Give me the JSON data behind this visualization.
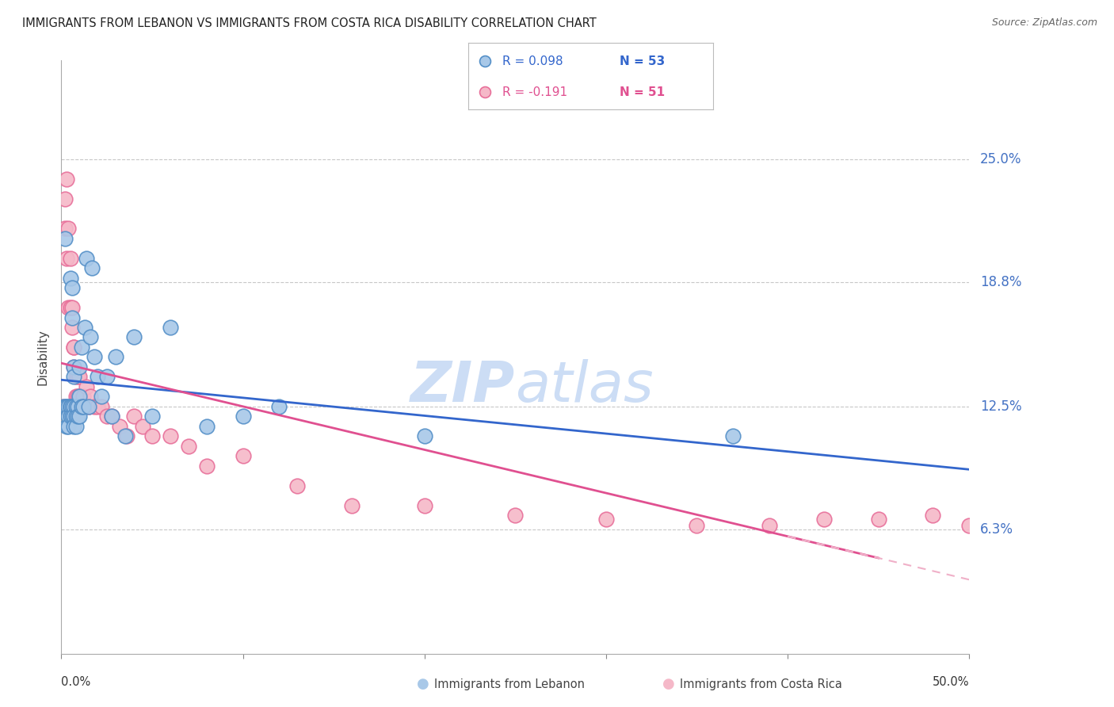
{
  "title": "IMMIGRANTS FROM LEBANON VS IMMIGRANTS FROM COSTA RICA DISABILITY CORRELATION CHART",
  "source": "Source: ZipAtlas.com",
  "ylabel": "Disability",
  "ytick_labels": [
    "25.0%",
    "18.8%",
    "12.5%",
    "6.3%"
  ],
  "ytick_values": [
    0.25,
    0.188,
    0.125,
    0.063
  ],
  "xlim": [
    0.0,
    0.5
  ],
  "ylim": [
    0.0,
    0.3
  ],
  "color_blue_fill": "#a8c8e8",
  "color_blue_edge": "#5590c8",
  "color_blue_line": "#3366cc",
  "color_pink_fill": "#f5b8c8",
  "color_pink_edge": "#e8709a",
  "color_pink_line": "#e05090",
  "color_pink_dash": "#f0b0c8",
  "background_color": "#ffffff",
  "grid_color": "#c8c8c8",
  "watermark_color": "#ccddf5",
  "lebanon_x": [
    0.001,
    0.002,
    0.002,
    0.003,
    0.003,
    0.003,
    0.004,
    0.004,
    0.004,
    0.005,
    0.005,
    0.005,
    0.005,
    0.006,
    0.006,
    0.006,
    0.006,
    0.007,
    0.007,
    0.007,
    0.007,
    0.007,
    0.008,
    0.008,
    0.008,
    0.009,
    0.009,
    0.01,
    0.01,
    0.01,
    0.011,
    0.011,
    0.012,
    0.013,
    0.014,
    0.015,
    0.016,
    0.017,
    0.018,
    0.02,
    0.022,
    0.025,
    0.028,
    0.03,
    0.035,
    0.04,
    0.05,
    0.06,
    0.08,
    0.1,
    0.12,
    0.2,
    0.37
  ],
  "lebanon_y": [
    0.125,
    0.21,
    0.125,
    0.125,
    0.125,
    0.115,
    0.125,
    0.12,
    0.115,
    0.19,
    0.125,
    0.125,
    0.12,
    0.185,
    0.17,
    0.125,
    0.12,
    0.145,
    0.14,
    0.125,
    0.12,
    0.115,
    0.125,
    0.12,
    0.115,
    0.125,
    0.12,
    0.145,
    0.13,
    0.12,
    0.155,
    0.125,
    0.125,
    0.165,
    0.2,
    0.125,
    0.16,
    0.195,
    0.15,
    0.14,
    0.13,
    0.14,
    0.12,
    0.15,
    0.11,
    0.16,
    0.12,
    0.165,
    0.115,
    0.12,
    0.125,
    0.11,
    0.11
  ],
  "costa_rica_x": [
    0.001,
    0.002,
    0.002,
    0.003,
    0.003,
    0.004,
    0.004,
    0.005,
    0.005,
    0.006,
    0.006,
    0.007,
    0.007,
    0.007,
    0.008,
    0.008,
    0.009,
    0.009,
    0.01,
    0.01,
    0.011,
    0.012,
    0.013,
    0.014,
    0.015,
    0.016,
    0.018,
    0.02,
    0.022,
    0.025,
    0.028,
    0.032,
    0.036,
    0.04,
    0.045,
    0.05,
    0.06,
    0.07,
    0.08,
    0.1,
    0.13,
    0.16,
    0.2,
    0.25,
    0.3,
    0.35,
    0.39,
    0.42,
    0.45,
    0.48,
    0.5
  ],
  "costa_rica_y": [
    0.125,
    0.23,
    0.215,
    0.24,
    0.2,
    0.215,
    0.175,
    0.2,
    0.175,
    0.175,
    0.165,
    0.155,
    0.145,
    0.155,
    0.14,
    0.13,
    0.14,
    0.13,
    0.14,
    0.13,
    0.125,
    0.13,
    0.125,
    0.135,
    0.125,
    0.13,
    0.125,
    0.125,
    0.125,
    0.12,
    0.12,
    0.115,
    0.11,
    0.12,
    0.115,
    0.11,
    0.11,
    0.105,
    0.095,
    0.1,
    0.085,
    0.075,
    0.075,
    0.07,
    0.068,
    0.065,
    0.065,
    0.068,
    0.068,
    0.07,
    0.065
  ]
}
